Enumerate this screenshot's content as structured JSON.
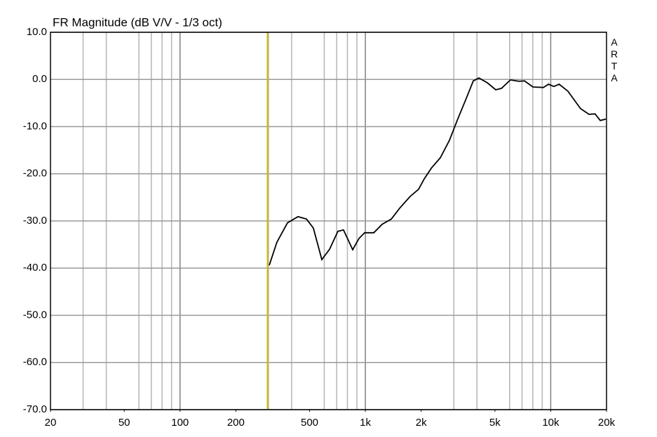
{
  "chart_data": {
    "type": "line",
    "title": "FR Magnitude (dB V/V - 1/3 oct)",
    "watermark": "ARTA",
    "x_scale": "log",
    "xlim": [
      20,
      20000
    ],
    "xticks": [
      20,
      50,
      100,
      200,
      500,
      {
        "value": 1000,
        "label": "1k"
      },
      {
        "value": 2000,
        "label": "2k"
      },
      {
        "value": 5000,
        "label": "5k"
      },
      {
        "value": 10000,
        "label": "10k"
      },
      {
        "value": 20000,
        "label": "20k"
      }
    ],
    "minor_xgrid": [
      30,
      40,
      60,
      70,
      80,
      90,
      300,
      400,
      600,
      700,
      800,
      900,
      3000,
      4000,
      6000,
      7000,
      8000,
      9000
    ],
    "major_xgrid": [
      100,
      1000,
      10000
    ],
    "ylim": [
      -70,
      10
    ],
    "yticks": [
      {
        "value": 10,
        "label": "10.0"
      },
      {
        "value": 0,
        "label": "0.0"
      },
      {
        "value": -10,
        "label": "-10.0"
      },
      {
        "value": -20,
        "label": "-20.0"
      },
      {
        "value": -30,
        "label": "-30.0"
      },
      {
        "value": -40,
        "label": "-40.0"
      },
      {
        "value": -50,
        "label": "-50.0"
      },
      {
        "value": -60,
        "label": "-60.0"
      },
      {
        "value": -70,
        "label": "-70.0"
      }
    ],
    "grid": true,
    "cursor": {
      "x": 297,
      "color": "#c8bc1e"
    },
    "series": [
      {
        "color": "#000000",
        "x": [
          303,
          333,
          380,
          433,
          481,
          524,
          582,
          641,
          711,
          762,
          854,
          924,
          991,
          1110,
          1231,
          1380,
          1531,
          1745,
          1936,
          2077,
          2270,
          2538,
          2842,
          3128,
          3502,
          3823,
          4097,
          4550,
          5050,
          5420,
          6062,
          6730,
          7220,
          8013,
          9130,
          9735,
          10410,
          11100,
          12390,
          14490,
          16090,
          17330,
          18500,
          19820
        ],
        "values": [
          -39.4,
          -34.5,
          -30.4,
          -29.1,
          -29.6,
          -31.5,
          -38.2,
          -36.0,
          -32.2,
          -31.9,
          -36.1,
          -33.7,
          -32.5,
          -32.5,
          -30.7,
          -29.6,
          -27.3,
          -24.8,
          -23.3,
          -21.1,
          -18.8,
          -16.6,
          -12.9,
          -8.7,
          -4.0,
          -0.3,
          0.3,
          -0.7,
          -2.2,
          -1.9,
          -0.1,
          -0.4,
          -0.3,
          -1.6,
          -1.7,
          -1.0,
          -1.5,
          -1.0,
          -2.5,
          -6.2,
          -7.4,
          -7.3,
          -8.7,
          -8.4
        ]
      }
    ]
  }
}
